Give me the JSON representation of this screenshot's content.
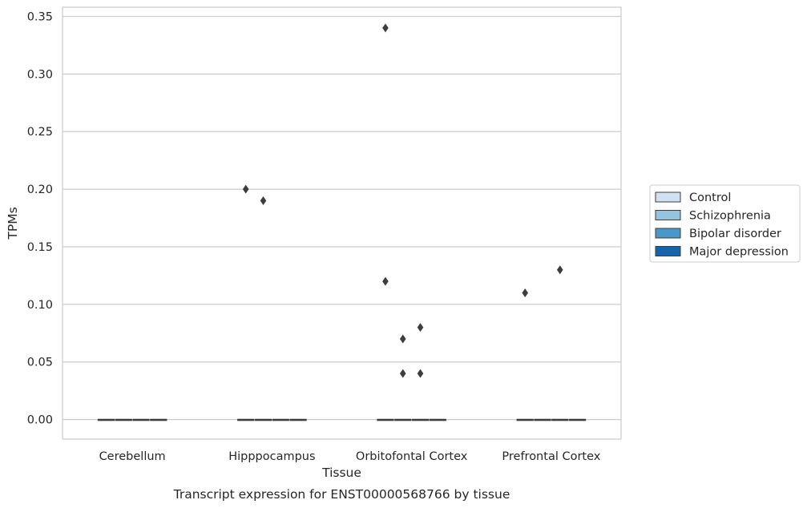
{
  "caption": "Transcript expression for ENST00000568766 by tissue",
  "chart_data": {
    "type": "box",
    "title": "",
    "xlabel": "Tissue",
    "ylabel": "TPMs",
    "categories": [
      "Cerebellum",
      "Hipppocampus",
      "Orbitofontal Cortex",
      "Prefrontal Cortex"
    ],
    "ylim": [
      -0.017,
      0.358
    ],
    "yticks": [
      "0.00",
      "0.05",
      "0.10",
      "0.15",
      "0.20",
      "0.25",
      "0.30",
      "0.35"
    ],
    "ytick_values": [
      0,
      0.05,
      0.1,
      0.15,
      0.2,
      0.25,
      0.3,
      0.35
    ],
    "grid": "horizontal",
    "legend_position": "right",
    "series": [
      {
        "name": "Control",
        "color": "#d0e1f2",
        "boxes": [
          {
            "median": 0,
            "q1": 0,
            "q3": 0
          },
          {
            "median": 0,
            "q1": 0,
            "q3": 0
          },
          {
            "median": 0,
            "q1": 0,
            "q3": 0
          },
          {
            "median": 0,
            "q1": 0,
            "q3": 0
          }
        ],
        "outliers": [
          [],
          [
            0.2
          ],
          [
            0.34,
            0.12
          ],
          [
            0.11
          ]
        ]
      },
      {
        "name": "Schizophrenia",
        "color": "#94c4df",
        "boxes": [
          {
            "median": 0,
            "q1": 0,
            "q3": 0
          },
          {
            "median": 0,
            "q1": 0,
            "q3": 0
          },
          {
            "median": 0,
            "q1": 0,
            "q3": 0
          },
          {
            "median": 0,
            "q1": 0,
            "q3": 0
          }
        ],
        "outliers": [
          [],
          [
            0.19
          ],
          [
            0.07,
            0.04
          ],
          []
        ]
      },
      {
        "name": "Bipolar disorder",
        "color": "#4a98c9",
        "boxes": [
          {
            "median": 0,
            "q1": 0,
            "q3": 0
          },
          {
            "median": 0,
            "q1": 0,
            "q3": 0
          },
          {
            "median": 0,
            "q1": 0,
            "q3": 0
          },
          {
            "median": 0,
            "q1": 0,
            "q3": 0
          }
        ],
        "outliers": [
          [],
          [],
          [
            0.08,
            0.04
          ],
          [
            0.13
          ]
        ]
      },
      {
        "name": "Major depression",
        "color": "#1764ab",
        "boxes": [
          {
            "median": 0,
            "q1": 0,
            "q3": 0
          },
          {
            "median": 0,
            "q1": 0,
            "q3": 0
          },
          {
            "median": 0,
            "q1": 0,
            "q3": 0
          },
          {
            "median": 0,
            "q1": 0,
            "q3": 0
          }
        ],
        "outliers": [
          [],
          [],
          [],
          []
        ]
      }
    ]
  }
}
